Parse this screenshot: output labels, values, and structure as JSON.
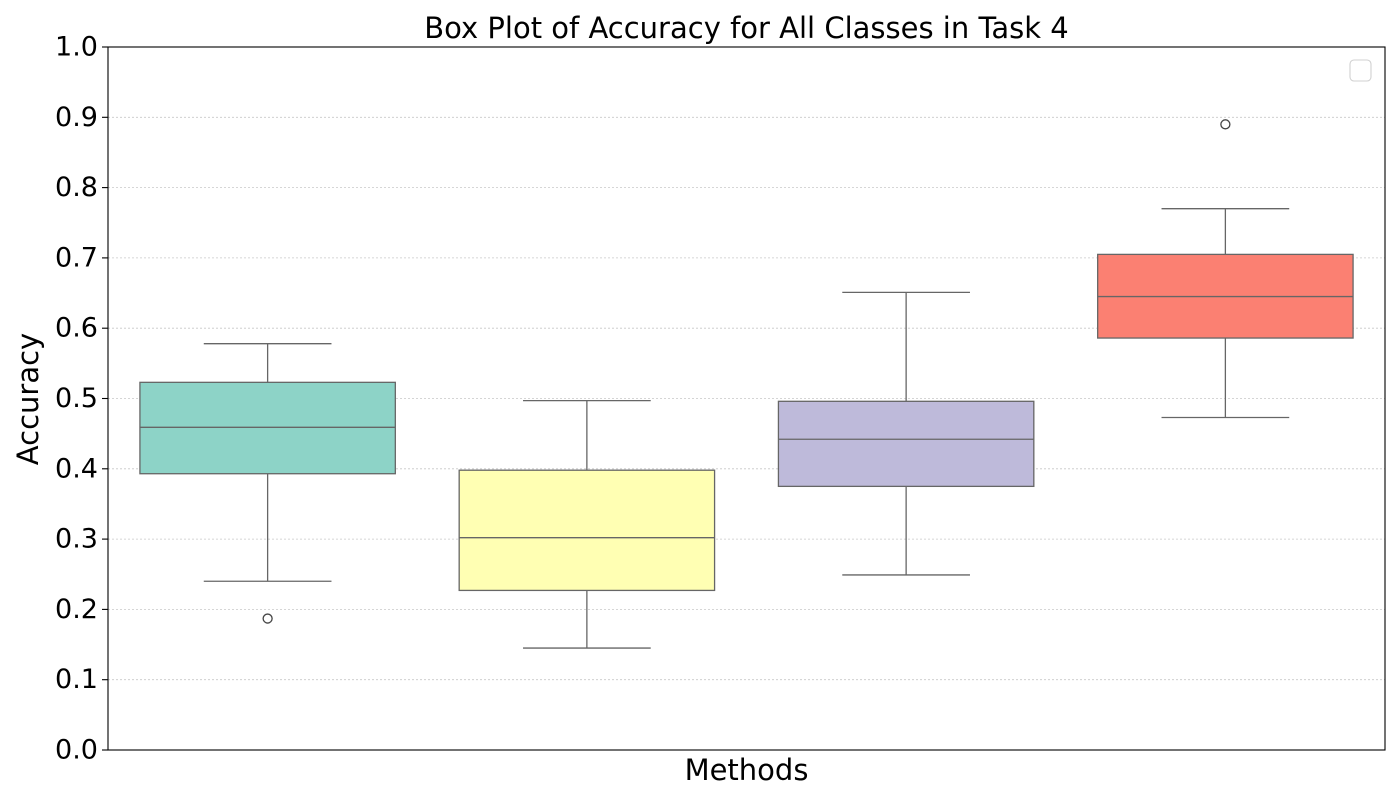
{
  "chart_data": {
    "type": "box",
    "title": "Box Plot of Accuracy for All Classes in Task 4",
    "xlabel": "Methods",
    "ylabel": "Accuracy",
    "ylim": [
      0.0,
      1.0
    ],
    "yticks": [
      "0.0",
      "0.1",
      "0.2",
      "0.3",
      "0.4",
      "0.5",
      "0.6",
      "0.7",
      "0.8",
      "0.9",
      "1.0"
    ],
    "grid": "horizontal dotted",
    "legend": {
      "placement": "top-right",
      "entries": []
    },
    "boxes": [
      {
        "color": "#8dd3c7",
        "whisker_low": 0.24,
        "q1": 0.393,
        "median": 0.459,
        "q3": 0.523,
        "whisker_high": 0.578,
        "outliers": [
          0.187
        ]
      },
      {
        "color": "#ffffb3",
        "whisker_low": 0.145,
        "q1": 0.227,
        "median": 0.302,
        "q3": 0.398,
        "whisker_high": 0.497,
        "outliers": []
      },
      {
        "color": "#bebada",
        "whisker_low": 0.249,
        "q1": 0.375,
        "median": 0.442,
        "q3": 0.496,
        "whisker_high": 0.651,
        "outliers": []
      },
      {
        "color": "#fb8072",
        "whisker_low": 0.473,
        "q1": 0.586,
        "median": 0.645,
        "q3": 0.705,
        "whisker_high": 0.77,
        "outliers": [
          0.89
        ]
      }
    ]
  }
}
